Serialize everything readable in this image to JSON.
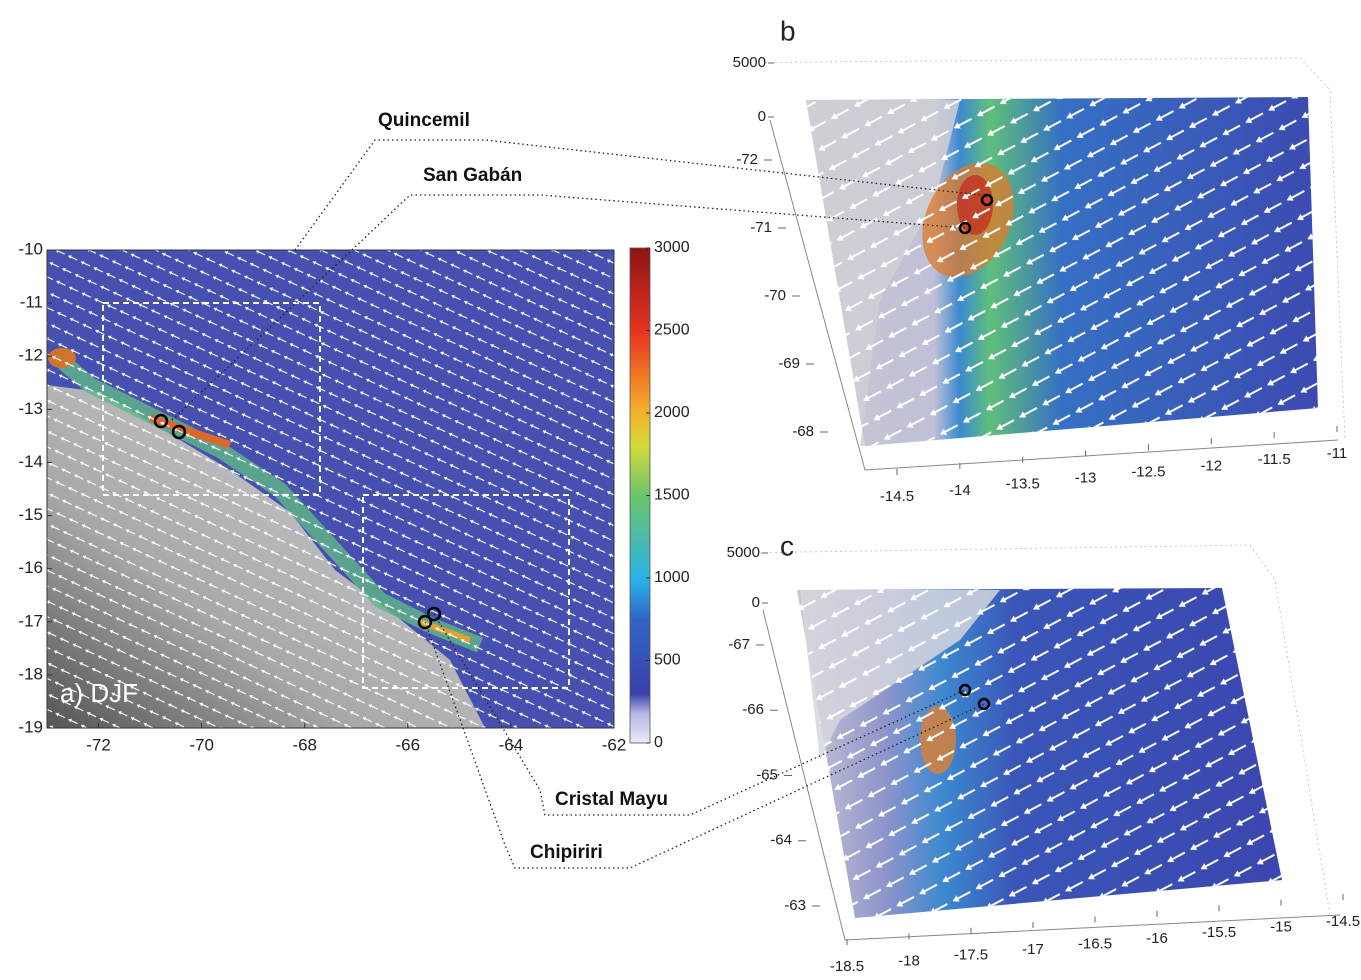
{
  "panel_a": {
    "label": "a) DJF",
    "xlim": [
      -73,
      -62
    ],
    "xticks": [
      -72,
      -70,
      -68,
      -66,
      -64,
      -62
    ],
    "ylim": [
      -19,
      -10
    ],
    "yticks": [
      -10,
      -11,
      -12,
      -13,
      -14,
      -15,
      -16,
      -17,
      -18,
      -19
    ],
    "colorbar": {
      "lim": [
        0,
        3000
      ],
      "ticks": [
        0,
        500,
        1000,
        1500,
        2000,
        2500,
        3000
      ]
    }
  },
  "panel_b": {
    "label": "b",
    "zticks": [
      5000,
      0
    ],
    "yticks": [
      -72,
      -71,
      -70,
      -69,
      -68
    ],
    "xticks": [
      -14.5,
      -14,
      -13.5,
      -13,
      -12.5,
      -12,
      -11.5,
      -11
    ]
  },
  "panel_c": {
    "label": "c",
    "zticks": [
      5000,
      0
    ],
    "yticks": [
      -67,
      -66,
      -65,
      -64,
      -63
    ],
    "xticks": [
      -18.5,
      -18,
      -17.5,
      -17,
      -16.5,
      -16,
      -15.5,
      -15,
      -14.5
    ]
  },
  "stations": [
    "Quincemil",
    "San Gabán",
    "Cristal Mayu",
    "Chipiriri"
  ]
}
